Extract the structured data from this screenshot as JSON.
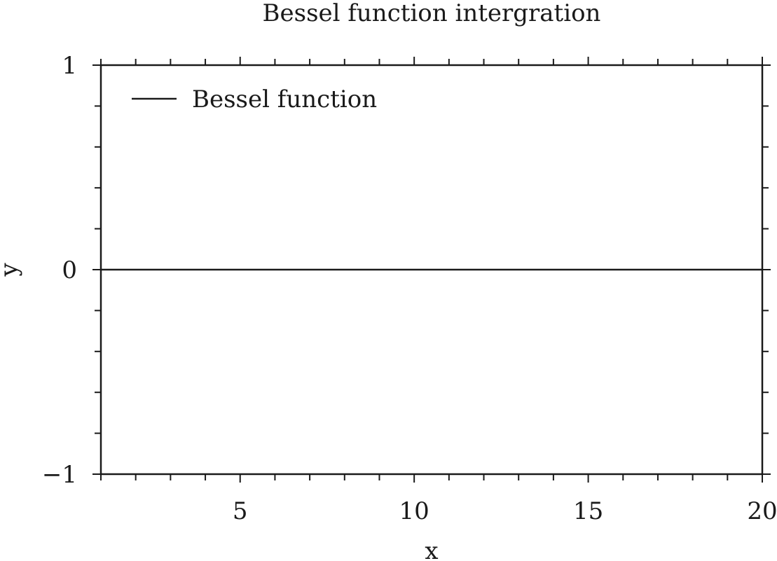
{
  "chart_data": {
    "type": "line",
    "title": "Bessel function intergration",
    "xlabel": "x",
    "ylabel": "y",
    "xlim": [
      1,
      20
    ],
    "ylim": [
      -1,
      1
    ],
    "x_ticks": [
      5,
      10,
      15,
      20
    ],
    "x_tick_labels": [
      "5",
      "10",
      "15",
      "20"
    ],
    "x_minor_step": 1,
    "y_ticks": [
      -1,
      0,
      1
    ],
    "y_tick_labels": [
      "−1",
      "0",
      "1"
    ],
    "y_minor_step": 0.2,
    "grid": false,
    "legend": {
      "placement": "top-left",
      "entries": [
        "Bessel function"
      ]
    },
    "series": [
      {
        "name": "Bessel function",
        "x": [
          1,
          20
        ],
        "y": [
          0,
          0
        ],
        "color": "#1a1a1a"
      }
    ]
  }
}
